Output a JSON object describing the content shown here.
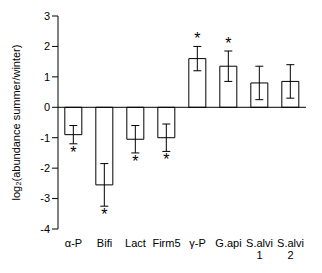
{
  "chart_data": {
    "type": "bar",
    "y_label": "log₂(abundance summer/winter)",
    "categories": [
      "α-P",
      "Bifi",
      "Lact",
      "Firm5",
      "γ-P",
      "G.api",
      "S.alvi 1",
      "S.alvi 2"
    ],
    "values": [
      -0.9,
      -2.55,
      -1.05,
      -1.0,
      1.6,
      1.35,
      0.8,
      0.85
    ],
    "errors": [
      0.3,
      0.7,
      0.45,
      0.45,
      0.4,
      0.5,
      0.55,
      0.55
    ],
    "color": "#ffffff",
    "ylim": [
      -4,
      3
    ],
    "yticks": [
      -4,
      -3,
      -2,
      -1,
      0,
      1,
      2,
      3
    ],
    "grid": false,
    "annotations": [
      {
        "category": "α-P",
        "text": "*"
      },
      {
        "category": "Bifi",
        "text": "*"
      },
      {
        "category": "Lact",
        "text": "*"
      },
      {
        "category": "Firm5",
        "text": "*"
      },
      {
        "category": "γ-P",
        "text": "*"
      },
      {
        "category": "G.api",
        "text": "*"
      }
    ]
  }
}
